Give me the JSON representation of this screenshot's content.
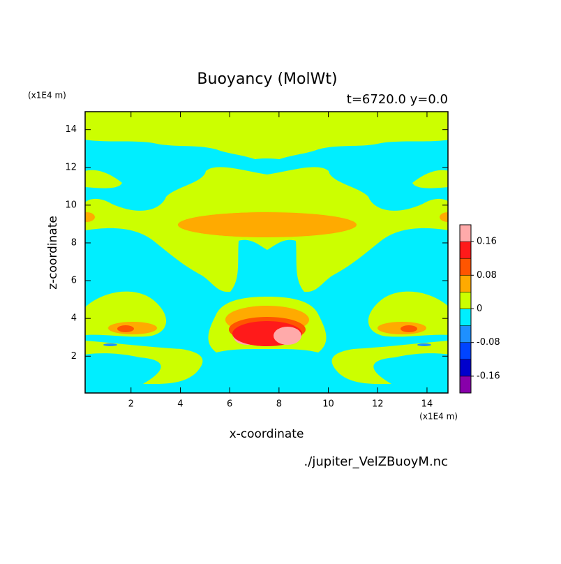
{
  "chart_data": {
    "type": "contour",
    "title": "Buoyancy (MolWt)",
    "subtitle": "t=6720.0 y=0.0",
    "x_label": "x-coordinate",
    "y_label": "z-coordinate",
    "x_unit": "(x1E4 m)",
    "y_unit": "(x1E4 m)",
    "source": "./jupiter_VelZBuoyM.nc",
    "xlim": [
      0.14,
      14.85
    ],
    "ylim": [
      0.05,
      14.95
    ],
    "xticks": [
      2,
      4,
      6,
      8,
      10,
      12,
      14
    ],
    "yticks": [
      2,
      4,
      6,
      8,
      10,
      12,
      14
    ],
    "colorbar": {
      "levels": [
        -0.2,
        -0.16,
        -0.12,
        -0.08,
        -0.04,
        0,
        0.04,
        0.08,
        0.12,
        0.16,
        0.2
      ],
      "colors": [
        "#8800aa",
        "#0000cc",
        "#0044ff",
        "#1e90ff",
        "#00eeff",
        "#ccff00",
        "#ffaa00",
        "#ff5500",
        "#ff1a1a",
        "#ffaaaa"
      ],
      "ticks": [
        -0.16,
        -0.08,
        0,
        0.08,
        0.16
      ]
    }
  }
}
